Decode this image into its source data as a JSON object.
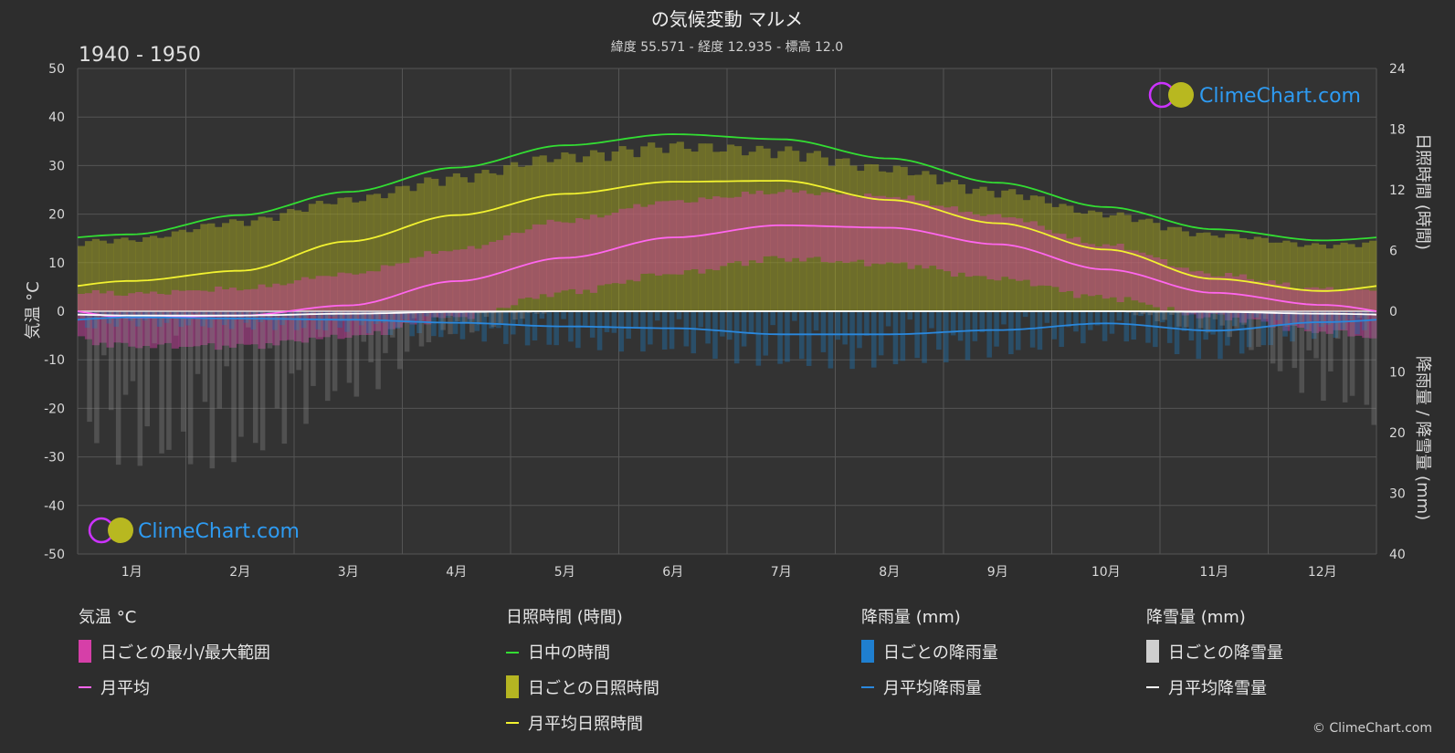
{
  "header": {
    "title": "の気候変動 マルメ",
    "subtitle": "緯度 55.571 - 経度 12.935 - 標高 12.0",
    "period": "1940 - 1950"
  },
  "watermark": {
    "text": "ClimeChart.com",
    "copyright": "© ClimeChart.com"
  },
  "colors": {
    "background": "#2d2d2d",
    "daylight": "#33dd33",
    "sunshine_avg": "#f2f230",
    "temp_avg": "#ff66ee",
    "rain_avg": "#2a88dd",
    "snow_avg": "#ffffff",
    "sunshine_fill": "#9c9c22",
    "temp_range": "#d63fa8",
    "rain_bar": "#1f6ea8",
    "snow_bar": "#8a8a8a",
    "brand_blue": "#2e9bf2"
  },
  "axes": {
    "left_label": "気温 °C",
    "right_top_label": "日照時間 (時間)",
    "right_bottom_label": "降雨量 / 降雪量 (mm)",
    "left_ticks": [
      "50",
      "40",
      "30",
      "20",
      "10",
      "0",
      "-10",
      "-20",
      "-30",
      "-40",
      "-50"
    ],
    "right_top_ticks": [
      "24",
      "18",
      "12",
      "6",
      "0"
    ],
    "right_bottom_ticks": [
      "10",
      "20",
      "30",
      "40"
    ]
  },
  "legend": {
    "temp": {
      "title": "気温 °C",
      "range": "日ごとの最小/最大範囲",
      "avg": "月平均"
    },
    "sun": {
      "title": "日照時間 (時間)",
      "daylight": "日中の時間",
      "daily": "日ごとの日照時間",
      "avg": "月平均日照時間"
    },
    "rain": {
      "title": "降雨量 (mm)",
      "daily": "日ごとの降雨量",
      "avg": "月平均降雨量"
    },
    "snow": {
      "title": "降雪量 (mm)",
      "daily": "日ごとの降雪量",
      "avg": "月平均降雪量"
    }
  },
  "chart_data": {
    "type": "line",
    "title": "の気候変動 マルメ",
    "subtitle": "緯度 55.571 - 経度 12.935 - 標高 12.0",
    "categories": [
      "1月",
      "2月",
      "3月",
      "4月",
      "5月",
      "6月",
      "7月",
      "8月",
      "9月",
      "10月",
      "11月",
      "12月"
    ],
    "temp_axis": {
      "label": "気温 °C",
      "range": [
        -50,
        50
      ]
    },
    "sun_axis": {
      "label": "日照時間 (時間)",
      "range": [
        0,
        24
      ]
    },
    "precip_axis": {
      "label": "降雨量 / 降雪量 (mm)",
      "range": [
        0,
        40
      ],
      "inverted": true
    },
    "grid": true,
    "series": [
      {
        "name": "日中の時間",
        "axis": "sun",
        "values": [
          7.6,
          9.5,
          11.8,
          14.2,
          16.4,
          17.5,
          17.0,
          15.1,
          12.7,
          10.3,
          8.1,
          7.0
        ]
      },
      {
        "name": "月平均日照時間",
        "axis": "sun",
        "values": [
          3.0,
          4.0,
          6.9,
          9.5,
          11.6,
          12.8,
          12.9,
          11.0,
          8.7,
          6.1,
          3.2,
          2.0
        ]
      },
      {
        "name": "月平均",
        "axis": "temp",
        "values": [
          -1.3,
          -0.9,
          1.2,
          6.2,
          11.0,
          15.2,
          17.7,
          17.2,
          13.8,
          8.6,
          3.8,
          1.3
        ]
      },
      {
        "name": "月平均降雨量",
        "axis": "precip",
        "values": [
          1.0,
          1.2,
          1.4,
          1.9,
          2.5,
          2.8,
          3.8,
          3.8,
          3.1,
          2.0,
          3.2,
          1.8
        ]
      },
      {
        "name": "月平均降雪量",
        "axis": "precip",
        "values": [
          0.7,
          0.7,
          0.4,
          0.1,
          0.0,
          0.0,
          0.0,
          0.0,
          0.0,
          0.0,
          0.1,
          0.4
        ]
      }
    ],
    "daily_temp_range_monthly": {
      "min": [
        -5,
        -5,
        -3,
        1,
        6,
        10,
        13,
        12,
        9,
        5,
        1,
        -2
      ],
      "max": [
        2,
        3,
        6,
        11,
        17,
        21,
        23,
        22,
        18,
        12,
        6,
        3
      ]
    }
  }
}
